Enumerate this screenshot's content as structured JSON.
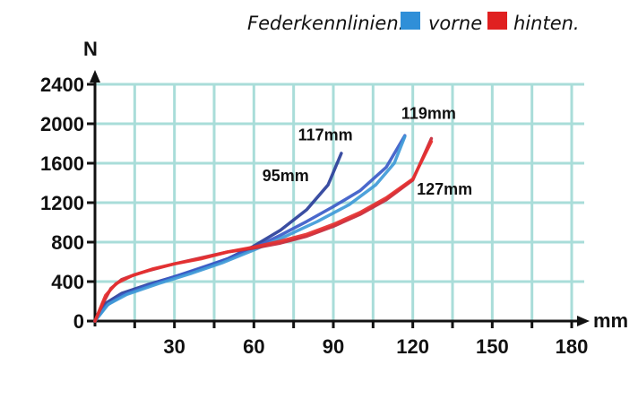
{
  "chart_data": {
    "type": "line",
    "title": "",
    "xlabel": "mm",
    "ylabel": "N",
    "xlim": [
      0,
      180
    ],
    "ylim": [
      0,
      2400
    ],
    "x_ticks": [
      30,
      60,
      90,
      120,
      150,
      180
    ],
    "y_ticks": [
      0,
      400,
      800,
      1200,
      1600,
      2000,
      2400
    ],
    "grid": true,
    "legend": {
      "title": "Federkennlinien:",
      "placement": "top-right",
      "entries": [
        {
          "label": "vorne",
          "color": "#2f8fd8"
        },
        {
          "label": "hinten.",
          "color": "#e02020"
        }
      ]
    },
    "series": [
      {
        "group": "vorne",
        "color": "#2a3f9a",
        "points": [
          [
            0,
            0
          ],
          [
            4,
            180
          ],
          [
            10,
            280
          ],
          [
            20,
            370
          ],
          [
            30,
            450
          ],
          [
            40,
            530
          ],
          [
            50,
            630
          ],
          [
            60,
            760
          ],
          [
            70,
            920
          ],
          [
            80,
            1130
          ],
          [
            88,
            1380
          ],
          [
            93,
            1700
          ]
        ]
      },
      {
        "group": "vorne",
        "color": "#3b5bc8",
        "points": [
          [
            0,
            0
          ],
          [
            4,
            150
          ],
          [
            10,
            260
          ],
          [
            20,
            360
          ],
          [
            30,
            450
          ],
          [
            40,
            540
          ],
          [
            50,
            630
          ],
          [
            60,
            740
          ],
          [
            70,
            870
          ],
          [
            80,
            1010
          ],
          [
            90,
            1160
          ],
          [
            100,
            1320
          ],
          [
            110,
            1560
          ],
          [
            117,
            1880
          ]
        ]
      },
      {
        "group": "vorne",
        "color": "#3f9ad8",
        "points": [
          [
            0,
            0
          ],
          [
            5,
            170
          ],
          [
            12,
            270
          ],
          [
            24,
            380
          ],
          [
            36,
            480
          ],
          [
            48,
            590
          ],
          [
            60,
            720
          ],
          [
            72,
            860
          ],
          [
            84,
            1010
          ],
          [
            96,
            1180
          ],
          [
            106,
            1380
          ],
          [
            113,
            1600
          ],
          [
            117,
            1870
          ]
        ]
      },
      {
        "group": "hinten",
        "color": "#c62838",
        "points": [
          [
            0,
            0
          ],
          [
            3,
            180
          ],
          [
            6,
            330
          ],
          [
            10,
            420
          ],
          [
            15,
            470
          ],
          [
            20,
            510
          ],
          [
            30,
            580
          ],
          [
            40,
            640
          ],
          [
            50,
            700
          ],
          [
            60,
            740
          ],
          [
            70,
            790
          ],
          [
            80,
            860
          ],
          [
            90,
            960
          ],
          [
            100,
            1080
          ],
          [
            110,
            1230
          ],
          [
            120,
            1430
          ],
          [
            127,
            1850
          ]
        ]
      },
      {
        "group": "hinten",
        "color": "#e53030",
        "points": [
          [
            0,
            0
          ],
          [
            4,
            260
          ],
          [
            8,
            380
          ],
          [
            14,
            460
          ],
          [
            22,
            530
          ],
          [
            30,
            580
          ],
          [
            40,
            630
          ],
          [
            50,
            700
          ],
          [
            60,
            750
          ],
          [
            70,
            810
          ],
          [
            80,
            880
          ],
          [
            90,
            980
          ],
          [
            100,
            1100
          ],
          [
            110,
            1250
          ],
          [
            120,
            1440
          ],
          [
            127,
            1820
          ]
        ]
      }
    ],
    "annotations": [
      {
        "text": "95mm",
        "x": 72,
        "y": 1420
      },
      {
        "text": "117mm",
        "x": 87,
        "y": 1830
      },
      {
        "text": "119mm",
        "x": 126,
        "y": 2050
      },
      {
        "text": "127mm",
        "x": 132,
        "y": 1280
      }
    ]
  }
}
